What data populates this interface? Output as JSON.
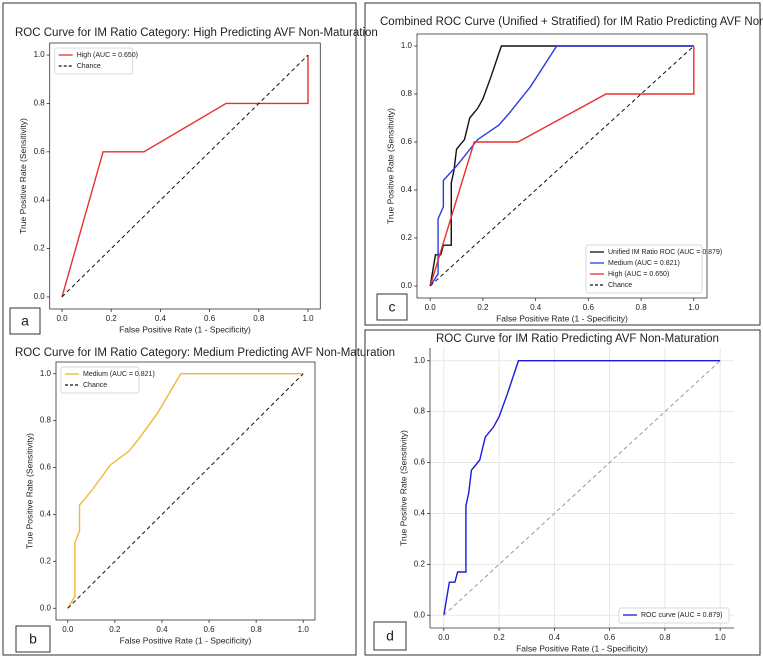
{
  "chart_data": [
    {
      "type": "line",
      "label": "a",
      "title": "ROC Curve for IM Ratio Category: High Predicting AVF Non-Maturation",
      "xlabel": "False Positive Rate (1 - Specificity)",
      "ylabel": "True Positive Rate (Sensitivity)",
      "xlim": [
        -0.05,
        1.05
      ],
      "ylim": [
        -0.05,
        1.05
      ],
      "xticks": [
        {
          "value": 0,
          "label": "0.0"
        },
        {
          "value": 0.2,
          "label": "0.2"
        },
        {
          "value": 0.4,
          "label": "0.4"
        },
        {
          "value": 0.6,
          "label": "0.6"
        },
        {
          "value": 0.8,
          "label": "0.8"
        },
        {
          "value": 1,
          "label": "1.0"
        }
      ],
      "yticks": [
        {
          "value": 0,
          "label": "0.0"
        },
        {
          "value": 0.2,
          "label": "0.2"
        },
        {
          "value": 0.4,
          "label": "0.4"
        },
        {
          "value": 0.6,
          "label": "0.6"
        },
        {
          "value": 0.8,
          "label": "0.8"
        },
        {
          "value": 1,
          "label": "1.0"
        }
      ],
      "grid": false,
      "legend": "upper left",
      "series": [
        {
          "name": "High (AUC = 0.650)",
          "color": "#e8302e",
          "dashed": false,
          "x": [
            0,
            0.167,
            0.333,
            0.667,
            1,
            1
          ],
          "values": [
            0,
            0.6,
            0.6,
            0.8,
            0.8,
            1
          ]
        },
        {
          "name": "Chance",
          "color": "#111111",
          "dashed": true,
          "x": [
            0,
            1
          ],
          "values": [
            0,
            1
          ]
        }
      ]
    },
    {
      "type": "line",
      "label": "b",
      "title": "ROC Curve for IM Ratio Category: Medium Predicting AVF Non-Maturation",
      "xlabel": "False Positive Rate (1 - Specificity)",
      "ylabel": "True Positive Rate (Sensitivity)",
      "xlim": [
        -0.05,
        1.05
      ],
      "ylim": [
        -0.05,
        1.05
      ],
      "xticks": [
        {
          "value": 0,
          "label": "0.0"
        },
        {
          "value": 0.2,
          "label": "0.2"
        },
        {
          "value": 0.4,
          "label": "0.4"
        },
        {
          "value": 0.6,
          "label": "0.6"
        },
        {
          "value": 0.8,
          "label": "0.8"
        },
        {
          "value": 1,
          "label": "1.0"
        }
      ],
      "yticks": [
        {
          "value": 0,
          "label": "0.0"
        },
        {
          "value": 0.2,
          "label": "0.2"
        },
        {
          "value": 0.4,
          "label": "0.4"
        },
        {
          "value": 0.6,
          "label": "0.6"
        },
        {
          "value": 0.8,
          "label": "0.8"
        },
        {
          "value": 1,
          "label": "1.0"
        }
      ],
      "grid": false,
      "legend": "upper left",
      "series": [
        {
          "name": "Medium (AUC = 0.821)",
          "color": "#f2b63a",
          "dashed": false,
          "x": [
            0,
            0.03,
            0.03,
            0.05,
            0.05,
            0.1,
            0.18,
            0.26,
            0.3,
            0.38,
            0.48,
            1
          ],
          "values": [
            0,
            0.05,
            0.28,
            0.33,
            0.44,
            0.5,
            0.61,
            0.67,
            0.72,
            0.83,
            1,
            1
          ]
        },
        {
          "name": "Chance",
          "color": "#111111",
          "dashed": true,
          "x": [
            0,
            1
          ],
          "values": [
            0,
            1
          ]
        }
      ]
    },
    {
      "type": "line",
      "label": "c",
      "title": "Combined ROC Curve (Unified + Stratified) for IM Ratio Predicting AVF Non-Maturation",
      "xlabel": "False Positive Rate (1 - Specificity)",
      "ylabel": "True Positive Rate (Sensitivity)",
      "xlim": [
        -0.05,
        1.05
      ],
      "ylim": [
        -0.05,
        1.05
      ],
      "xticks": [
        {
          "value": 0,
          "label": "0.0"
        },
        {
          "value": 0.2,
          "label": "0.2"
        },
        {
          "value": 0.4,
          "label": "0.4"
        },
        {
          "value": 0.6,
          "label": "0.6"
        },
        {
          "value": 0.8,
          "label": "0.8"
        },
        {
          "value": 1,
          "label": "1.0"
        }
      ],
      "yticks": [
        {
          "value": 0,
          "label": "0.0"
        },
        {
          "value": 0.2,
          "label": "0.2"
        },
        {
          "value": 0.4,
          "label": "0.4"
        },
        {
          "value": 0.6,
          "label": "0.6"
        },
        {
          "value": 0.8,
          "label": "0.8"
        },
        {
          "value": 1,
          "label": "1.0"
        }
      ],
      "grid": false,
      "legend": "lower right",
      "series": [
        {
          "name": "Unified IM Ratio ROC (AUC = 0.879)",
          "color": "#111111",
          "dashed": false,
          "x": [
            0,
            0.02,
            0.04,
            0.05,
            0.08,
            0.08,
            0.09,
            0.1,
            0.13,
            0.15,
            0.18,
            0.2,
            0.23,
            0.27,
            1
          ],
          "values": [
            0,
            0.13,
            0.13,
            0.17,
            0.17,
            0.43,
            0.48,
            0.57,
            0.61,
            0.7,
            0.74,
            0.78,
            0.87,
            1,
            1
          ]
        },
        {
          "name": "Medium (AUC = 0.821)",
          "color": "#2a3de0",
          "dashed": false,
          "x": [
            0,
            0.03,
            0.03,
            0.05,
            0.05,
            0.1,
            0.18,
            0.26,
            0.3,
            0.38,
            0.48,
            1
          ],
          "values": [
            0,
            0.05,
            0.28,
            0.33,
            0.44,
            0.5,
            0.61,
            0.67,
            0.72,
            0.83,
            1,
            1
          ]
        },
        {
          "name": "High (AUC = 0.650)",
          "color": "#e8302e",
          "dashed": false,
          "x": [
            0,
            0.167,
            0.333,
            0.667,
            1,
            1
          ],
          "values": [
            0,
            0.6,
            0.6,
            0.8,
            0.8,
            1
          ]
        },
        {
          "name": "Chance",
          "color": "#111111",
          "dashed": true,
          "x": [
            0,
            1
          ],
          "values": [
            0,
            1
          ]
        }
      ]
    },
    {
      "type": "line",
      "label": "d",
      "title": "ROC Curve for IM Ratio Predicting AVF Non-Maturation",
      "xlabel": "False Positive Rate (1 - Specificity)",
      "ylabel": "True Positive Rate (Sensitivity)",
      "xlim": [
        -0.05,
        1.05
      ],
      "ylim": [
        -0.05,
        1.05
      ],
      "xticks": [
        {
          "value": 0,
          "label": "0.0"
        },
        {
          "value": 0.2,
          "label": "0.2"
        },
        {
          "value": 0.4,
          "label": "0.4"
        },
        {
          "value": 0.6,
          "label": "0.6"
        },
        {
          "value": 0.8,
          "label": "0.8"
        },
        {
          "value": 1,
          "label": "1.0"
        }
      ],
      "yticks": [
        {
          "value": 0,
          "label": "0.0"
        },
        {
          "value": 0.2,
          "label": "0.2"
        },
        {
          "value": 0.4,
          "label": "0.4"
        },
        {
          "value": 0.6,
          "label": "0.6"
        },
        {
          "value": 0.8,
          "label": "0.8"
        },
        {
          "value": 1,
          "label": "1.0"
        }
      ],
      "grid": true,
      "legend": "lower right",
      "series": [
        {
          "name": "ROC curve (AUC = 0.879)",
          "color": "#1a1adc",
          "dashed": false,
          "x": [
            0,
            0.02,
            0.04,
            0.05,
            0.08,
            0.08,
            0.09,
            0.1,
            0.13,
            0.15,
            0.18,
            0.2,
            0.23,
            0.27,
            1
          ],
          "values": [
            0,
            0.13,
            0.13,
            0.17,
            0.17,
            0.43,
            0.48,
            0.57,
            0.61,
            0.7,
            0.74,
            0.78,
            0.87,
            1,
            1
          ]
        },
        {
          "name": null,
          "color": "#999999",
          "dashed": true,
          "x": [
            0,
            1
          ],
          "values": [
            0,
            1
          ]
        }
      ]
    }
  ]
}
